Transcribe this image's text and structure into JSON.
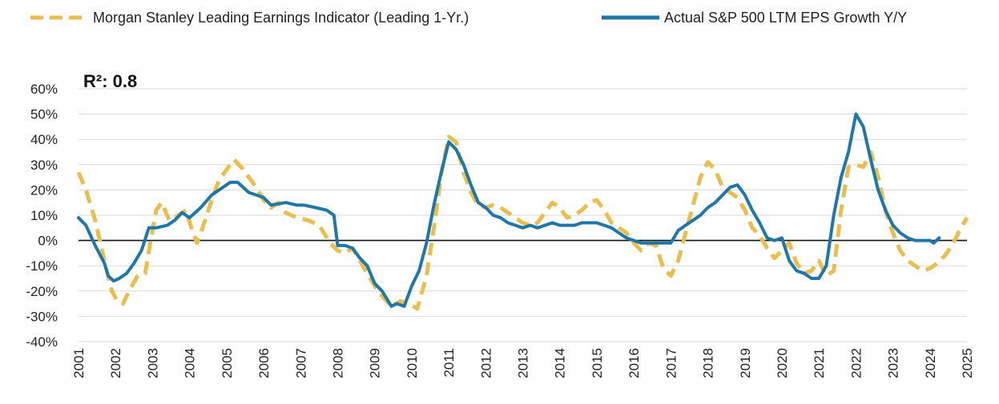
{
  "chart_data": {
    "type": "line",
    "annotation": "R²: 0.8",
    "y_ticks": [
      "60%",
      "50%",
      "40%",
      "30%",
      "20%",
      "10%",
      "0%",
      "-10%",
      "-20%",
      "-30%",
      "-40%"
    ],
    "x_ticks": [
      "2001",
      "2002",
      "2003",
      "2004",
      "2005",
      "2006",
      "2007",
      "2008",
      "2009",
      "2010",
      "2011",
      "2012",
      "2013",
      "2014",
      "2015",
      "2016",
      "2017",
      "2018",
      "2019",
      "2020",
      "2021",
      "2022",
      "2023",
      "2024",
      "2025"
    ],
    "xlim": [
      2001,
      2025
    ],
    "ylim": [
      -40,
      60
    ],
    "grid": "horizontal",
    "legend_position": "top",
    "series": [
      {
        "name": "Morgan Stanley Leading Earnings Indicator (Leading 1-Yr.)",
        "color": "#E8BE4F",
        "style": "dashed",
        "points": [
          [
            2001.0,
            27
          ],
          [
            2001.2,
            20
          ],
          [
            2001.45,
            8
          ],
          [
            2001.7,
            -8
          ],
          [
            2001.9,
            -20
          ],
          [
            2002.05,
            -24
          ],
          [
            2002.2,
            -25
          ],
          [
            2002.4,
            -19
          ],
          [
            2002.6,
            -14
          ],
          [
            2002.8,
            -13
          ],
          [
            2002.95,
            0
          ],
          [
            2003.1,
            12
          ],
          [
            2003.25,
            15
          ],
          [
            2003.45,
            8
          ],
          [
            2003.7,
            10
          ],
          [
            2003.9,
            12
          ],
          [
            2004.05,
            5
          ],
          [
            2004.2,
            -1
          ],
          [
            2004.35,
            5
          ],
          [
            2004.6,
            16
          ],
          [
            2004.8,
            24
          ],
          [
            2005.0,
            28
          ],
          [
            2005.2,
            32
          ],
          [
            2005.4,
            29
          ],
          [
            2005.6,
            25
          ],
          [
            2005.8,
            21
          ],
          [
            2006.0,
            16
          ],
          [
            2006.2,
            13
          ],
          [
            2006.4,
            15
          ],
          [
            2006.6,
            11
          ],
          [
            2006.9,
            9
          ],
          [
            2007.2,
            8
          ],
          [
            2007.5,
            6
          ],
          [
            2007.8,
            -1
          ],
          [
            2008.0,
            -4
          ],
          [
            2008.2,
            -5
          ],
          [
            2008.4,
            -3
          ],
          [
            2008.6,
            -8
          ],
          [
            2008.8,
            -13
          ],
          [
            2009.0,
            -18
          ],
          [
            2009.2,
            -22
          ],
          [
            2009.45,
            -26
          ],
          [
            2009.7,
            -24
          ],
          [
            2009.95,
            -25
          ],
          [
            2010.15,
            -27
          ],
          [
            2010.4,
            -14
          ],
          [
            2010.6,
            5
          ],
          [
            2010.8,
            26
          ],
          [
            2011.0,
            41
          ],
          [
            2011.2,
            39
          ],
          [
            2011.4,
            27
          ],
          [
            2011.6,
            19
          ],
          [
            2011.8,
            14
          ],
          [
            2012.0,
            13
          ],
          [
            2012.2,
            14
          ],
          [
            2012.4,
            13
          ],
          [
            2012.6,
            11
          ],
          [
            2012.8,
            9
          ],
          [
            2013.0,
            7
          ],
          [
            2013.2,
            6
          ],
          [
            2013.4,
            7
          ],
          [
            2013.6,
            11
          ],
          [
            2013.8,
            15
          ],
          [
            2014.0,
            13
          ],
          [
            2014.2,
            9
          ],
          [
            2014.4,
            10
          ],
          [
            2014.6,
            12
          ],
          [
            2014.8,
            15
          ],
          [
            2015.0,
            16
          ],
          [
            2015.2,
            12
          ],
          [
            2015.4,
            7
          ],
          [
            2015.6,
            5
          ],
          [
            2015.8,
            3
          ],
          [
            2016.0,
            -1
          ],
          [
            2016.2,
            -4
          ],
          [
            2016.4,
            -1
          ],
          [
            2016.6,
            -2
          ],
          [
            2016.8,
            -11
          ],
          [
            2017.0,
            -14
          ],
          [
            2017.2,
            -8
          ],
          [
            2017.4,
            3
          ],
          [
            2017.6,
            14
          ],
          [
            2017.8,
            25
          ],
          [
            2018.0,
            31
          ],
          [
            2018.2,
            28
          ],
          [
            2018.4,
            21
          ],
          [
            2018.6,
            19
          ],
          [
            2018.8,
            17
          ],
          [
            2019.0,
            12
          ],
          [
            2019.2,
            5
          ],
          [
            2019.4,
            2
          ],
          [
            2019.6,
            -3
          ],
          [
            2019.8,
            -7
          ],
          [
            2020.0,
            -4
          ],
          [
            2020.2,
            -1
          ],
          [
            2020.4,
            -9
          ],
          [
            2020.6,
            -13
          ],
          [
            2020.8,
            -12
          ],
          [
            2021.0,
            -8
          ],
          [
            2021.2,
            -14
          ],
          [
            2021.4,
            -12
          ],
          [
            2021.6,
            12
          ],
          [
            2021.8,
            29
          ],
          [
            2022.0,
            30
          ],
          [
            2022.2,
            29
          ],
          [
            2022.4,
            35
          ],
          [
            2022.6,
            25
          ],
          [
            2022.8,
            12
          ],
          [
            2023.0,
            3
          ],
          [
            2023.2,
            -4
          ],
          [
            2023.4,
            -8
          ],
          [
            2023.6,
            -10
          ],
          [
            2023.8,
            -12
          ],
          [
            2024.0,
            -11
          ],
          [
            2024.2,
            -9
          ],
          [
            2024.4,
            -6
          ],
          [
            2024.6,
            -2
          ],
          [
            2024.8,
            4
          ],
          [
            2025.0,
            9
          ]
        ]
      },
      {
        "name": "Actual S&P 500 LTM EPS Growth Y/Y",
        "color": "#1F77A8",
        "style": "solid",
        "points": [
          [
            2001.0,
            9
          ],
          [
            2001.2,
            6
          ],
          [
            2001.45,
            -2
          ],
          [
            2001.7,
            -9
          ],
          [
            2001.8,
            -14
          ],
          [
            2001.95,
            -16
          ],
          [
            2002.1,
            -15
          ],
          [
            2002.3,
            -13
          ],
          [
            2002.5,
            -9
          ],
          [
            2002.7,
            -4
          ],
          [
            2002.9,
            5
          ],
          [
            2003.1,
            5
          ],
          [
            2003.4,
            6
          ],
          [
            2003.6,
            8
          ],
          [
            2003.8,
            11
          ],
          [
            2004.0,
            9
          ],
          [
            2004.3,
            13
          ],
          [
            2004.6,
            18
          ],
          [
            2004.9,
            21
          ],
          [
            2005.1,
            23
          ],
          [
            2005.3,
            23
          ],
          [
            2005.6,
            19
          ],
          [
            2006.0,
            17
          ],
          [
            2006.2,
            14
          ],
          [
            2006.6,
            15
          ],
          [
            2006.9,
            14
          ],
          [
            2007.1,
            14
          ],
          [
            2007.4,
            13
          ],
          [
            2007.7,
            12
          ],
          [
            2007.9,
            10
          ],
          [
            2008.0,
            -2
          ],
          [
            2008.2,
            -2
          ],
          [
            2008.4,
            -3
          ],
          [
            2008.6,
            -7
          ],
          [
            2008.8,
            -10
          ],
          [
            2009.0,
            -17
          ],
          [
            2009.2,
            -20
          ],
          [
            2009.45,
            -26
          ],
          [
            2009.6,
            -25
          ],
          [
            2009.8,
            -26
          ],
          [
            2010.0,
            -18
          ],
          [
            2010.2,
            -12
          ],
          [
            2010.4,
            -1
          ],
          [
            2010.6,
            14
          ],
          [
            2010.8,
            27
          ],
          [
            2011.0,
            39
          ],
          [
            2011.2,
            36
          ],
          [
            2011.4,
            30
          ],
          [
            2011.6,
            22
          ],
          [
            2011.8,
            15
          ],
          [
            2012.0,
            13
          ],
          [
            2012.2,
            10
          ],
          [
            2012.4,
            9
          ],
          [
            2012.6,
            7
          ],
          [
            2012.8,
            6
          ],
          [
            2013.0,
            5
          ],
          [
            2013.2,
            6
          ],
          [
            2013.4,
            5
          ],
          [
            2013.6,
            6
          ],
          [
            2013.8,
            7
          ],
          [
            2014.0,
            6
          ],
          [
            2014.2,
            6
          ],
          [
            2014.4,
            6
          ],
          [
            2014.6,
            7
          ],
          [
            2014.8,
            7
          ],
          [
            2015.0,
            7
          ],
          [
            2015.2,
            6
          ],
          [
            2015.4,
            5
          ],
          [
            2015.6,
            3
          ],
          [
            2015.8,
            1
          ],
          [
            2016.0,
            0
          ],
          [
            2016.2,
            -1
          ],
          [
            2016.4,
            -1
          ],
          [
            2016.6,
            -1
          ],
          [
            2016.8,
            -1
          ],
          [
            2017.0,
            -1
          ],
          [
            2017.2,
            4
          ],
          [
            2017.4,
            6
          ],
          [
            2017.6,
            8
          ],
          [
            2017.8,
            10
          ],
          [
            2018.0,
            13
          ],
          [
            2018.2,
            15
          ],
          [
            2018.4,
            18
          ],
          [
            2018.6,
            21
          ],
          [
            2018.8,
            22
          ],
          [
            2019.0,
            18
          ],
          [
            2019.2,
            12
          ],
          [
            2019.4,
            7
          ],
          [
            2019.6,
            1
          ],
          [
            2019.8,
            0
          ],
          [
            2020.0,
            1
          ],
          [
            2020.2,
            -8
          ],
          [
            2020.4,
            -12
          ],
          [
            2020.6,
            -13
          ],
          [
            2020.8,
            -15
          ],
          [
            2021.0,
            -15
          ],
          [
            2021.2,
            -10
          ],
          [
            2021.4,
            10
          ],
          [
            2021.6,
            25
          ],
          [
            2021.8,
            35
          ],
          [
            2022.0,
            50
          ],
          [
            2022.2,
            45
          ],
          [
            2022.4,
            32
          ],
          [
            2022.6,
            20
          ],
          [
            2022.8,
            12
          ],
          [
            2023.0,
            6
          ],
          [
            2023.2,
            3
          ],
          [
            2023.4,
            1
          ],
          [
            2023.6,
            0
          ],
          [
            2023.8,
            0
          ],
          [
            2024.0,
            0
          ],
          [
            2024.1,
            -1
          ],
          [
            2024.25,
            1
          ]
        ]
      }
    ]
  }
}
